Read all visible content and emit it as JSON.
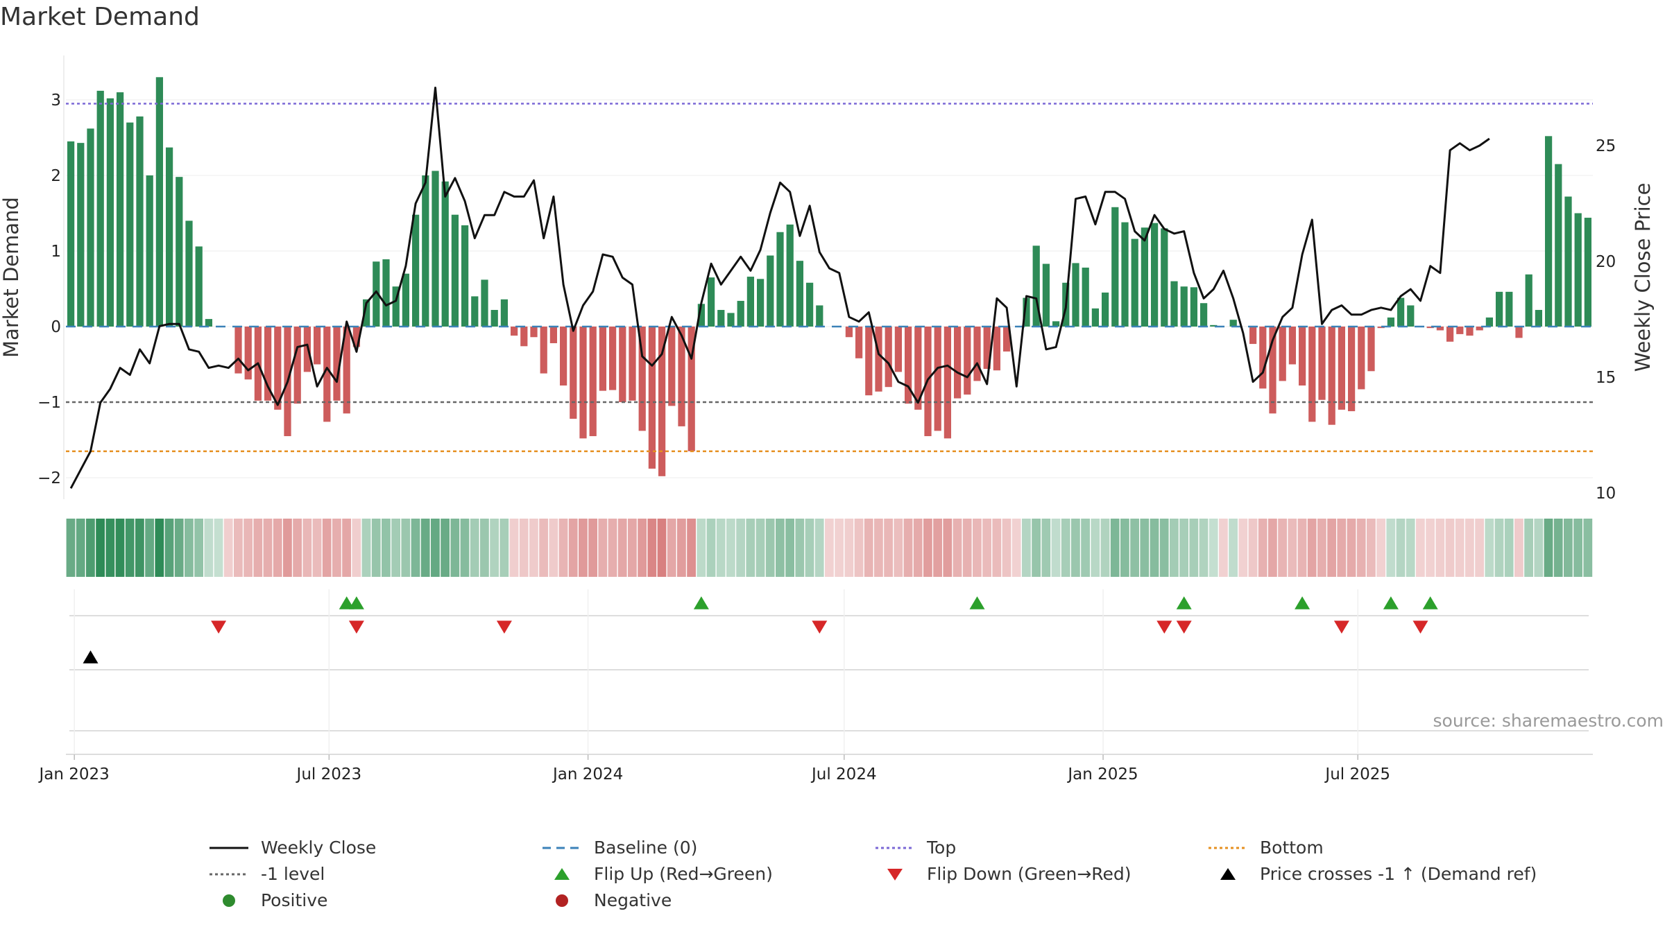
{
  "chart_data": {
    "type": "bar+line",
    "title": "Market Demand",
    "ylabel_left": "Market Demand",
    "ylabel_right": "Weekly Close Price",
    "ylim_left": [
      -2.2,
      3.5
    ],
    "ylim_right": [
      9.5,
      28.9
    ],
    "yticks_left": [
      "−2",
      "−1",
      "0",
      "1",
      "2",
      "3"
    ],
    "yticks_right": [
      "10",
      "15",
      "20",
      "25"
    ],
    "x_start": "2022-12-26",
    "x_step_days": 7,
    "xticks": [
      {
        "label": "Jan 2023",
        "date": "2023-01-01"
      },
      {
        "label": "Jul 2023",
        "date": "2023-07-01"
      },
      {
        "label": "Jan 2024",
        "date": "2024-01-01"
      },
      {
        "label": "Jul 2024",
        "date": "2024-07-01"
      },
      {
        "label": "Jan 2025",
        "date": "2025-01-01"
      },
      {
        "label": "Jul 2025",
        "date": "2025-07-01"
      }
    ],
    "reference_lines": {
      "top": 2.95,
      "minus_one": -1.0,
      "bottom": -1.65,
      "baseline": 0
    },
    "demand": [
      2.45,
      2.43,
      2.62,
      3.12,
      3.02,
      3.1,
      2.7,
      2.78,
      2.0,
      3.3,
      2.37,
      1.98,
      1.4,
      1.06,
      0.1,
      0,
      0,
      -0.62,
      -0.7,
      -0.98,
      -0.98,
      -1.1,
      -1.45,
      -1.02,
      -0.6,
      -0.5,
      -1.26,
      -0.98,
      -1.15,
      -0.27,
      0.36,
      0.86,
      0.89,
      0.53,
      0.7,
      1.48,
      2.0,
      2.06,
      1.92,
      1.48,
      1.34,
      0.4,
      0.62,
      0.22,
      0.36,
      -0.12,
      -0.26,
      -0.14,
      -0.62,
      -0.22,
      -0.78,
      -1.22,
      -1.48,
      -1.45,
      -0.85,
      -0.84,
      -1.0,
      -0.98,
      -1.38,
      -1.88,
      -1.98,
      -1.05,
      -1.32,
      -1.65,
      0.3,
      0.65,
      0.22,
      0.18,
      0.34,
      0.66,
      0.63,
      0.94,
      1.25,
      1.35,
      0.87,
      0.58,
      0.28,
      0,
      0,
      -0.14,
      -0.42,
      -0.91,
      -0.86,
      -0.8,
      -0.6,
      -1.02,
      -1.1,
      -1.45,
      -1.38,
      -1.48,
      -0.95,
      -0.9,
      -0.72,
      -0.56,
      -0.58,
      -0.33,
      0,
      0.38,
      1.07,
      0.83,
      0.07,
      0.58,
      0.84,
      0.78,
      0.24,
      0.45,
      1.58,
      1.38,
      1.16,
      1.31,
      1.37,
      1.3,
      0.6,
      0.53,
      0.52,
      0.31,
      0.02,
      0,
      0.09,
      0,
      -0.23,
      -0.82,
      -1.15,
      -0.72,
      -0.5,
      -0.78,
      -1.26,
      -0.97,
      -1.3,
      -1.1,
      -1.12,
      -0.83,
      -0.59,
      -0.02,
      0.12,
      0.38,
      0.28,
      0,
      -0.02,
      -0.05,
      -0.2,
      -0.1,
      -0.12,
      -0.05,
      0.12,
      0.46,
      0.46,
      -0.15,
      0.69,
      0.22,
      2.52,
      2.15,
      1.72,
      1.5,
      1.44
    ],
    "price": [
      10.2,
      11.0,
      11.8,
      13.9,
      14.5,
      15.4,
      15.1,
      16.2,
      15.6,
      17.2,
      17.3,
      17.3,
      16.2,
      16.1,
      15.4,
      15.5,
      15.4,
      15.8,
      15.3,
      15.6,
      14.6,
      13.8,
      14.8,
      16.3,
      16.4,
      14.6,
      15.4,
      14.8,
      17.4,
      16.1,
      18.2,
      18.7,
      18.1,
      18.3,
      19.8,
      22.5,
      23.4,
      27.5,
      22.8,
      23.6,
      22.6,
      21.0,
      22.0,
      22.0,
      23.0,
      22.8,
      22.8,
      23.5,
      21.0,
      22.8,
      19.0,
      17.0,
      18.1,
      18.7,
      20.3,
      20.2,
      19.3,
      19.0,
      15.9,
      15.5,
      16.0,
      17.6,
      16.8,
      15.8,
      18.2,
      19.9,
      19.0,
      19.6,
      20.2,
      19.6,
      20.5,
      22.1,
      23.4,
      23.0,
      21.1,
      22.4,
      20.4,
      19.7,
      19.5,
      17.6,
      17.4,
      17.8,
      16.0,
      15.6,
      14.8,
      14.6,
      13.9,
      14.9,
      15.4,
      15.5,
      15.2,
      15.0,
      15.6,
      14.7,
      18.4,
      18.0,
      14.6,
      18.5,
      18.4,
      16.2,
      16.3,
      18.0,
      22.7,
      22.8,
      21.6,
      23.0,
      23.0,
      22.7,
      21.3,
      20.9,
      22.0,
      21.4,
      21.2,
      21.3,
      19.5,
      18.4,
      18.8,
      19.6,
      18.4,
      16.9,
      14.8,
      15.2,
      16.6,
      17.6,
      18.0,
      20.3,
      21.8,
      17.3,
      17.9,
      18.1,
      17.7,
      17.7,
      17.9,
      18.0,
      17.9,
      18.5,
      18.8,
      18.3,
      19.8,
      19.5,
      24.8,
      25.1,
      24.8,
      25.0,
      25.3
    ],
    "color_strip_levels": [
      0.72,
      0.74,
      0.85,
      1.0,
      0.96,
      0.98,
      0.9,
      0.92,
      0.74,
      1.0,
      0.8,
      0.72,
      0.58,
      0.52,
      0.3,
      0.28,
      0.3,
      0.42,
      0.44,
      0.5,
      0.5,
      0.53,
      0.62,
      0.52,
      0.44,
      0.42,
      0.56,
      0.5,
      0.54,
      0.3,
      0.4,
      0.5,
      0.52,
      0.44,
      0.48,
      0.62,
      0.72,
      0.74,
      0.72,
      0.62,
      0.58,
      0.44,
      0.48,
      0.38,
      0.42,
      0.3,
      0.34,
      0.32,
      0.42,
      0.32,
      0.46,
      0.56,
      0.62,
      0.62,
      0.5,
      0.5,
      0.54,
      0.54,
      0.62,
      0.74,
      0.78,
      0.54,
      0.6,
      0.68,
      0.32,
      0.4,
      0.34,
      0.32,
      0.36,
      0.42,
      0.42,
      0.48,
      0.54,
      0.56,
      0.48,
      0.42,
      0.36,
      0.28,
      0.28,
      0.3,
      0.36,
      0.46,
      0.44,
      0.44,
      0.4,
      0.5,
      0.52,
      0.6,
      0.58,
      0.6,
      0.48,
      0.48,
      0.44,
      0.42,
      0.42,
      0.36,
      0.28,
      0.36,
      0.5,
      0.46,
      0.3,
      0.42,
      0.48,
      0.46,
      0.34,
      0.38,
      0.62,
      0.58,
      0.54,
      0.56,
      0.58,
      0.56,
      0.44,
      0.42,
      0.42,
      0.38,
      0.28,
      0.28,
      0.3,
      0.28,
      0.34,
      0.48,
      0.54,
      0.46,
      0.42,
      0.46,
      0.56,
      0.5,
      0.56,
      0.52,
      0.52,
      0.48,
      0.42,
      0.28,
      0.3,
      0.36,
      0.34,
      0.28,
      0.28,
      0.3,
      0.32,
      0.3,
      0.3,
      0.3,
      0.32,
      0.38,
      0.4,
      0.32,
      0.42,
      0.36,
      0.72,
      0.66,
      0.6,
      0.58,
      0.56
    ],
    "flip_up_weeks": [
      28,
      29,
      64,
      92,
      113,
      125,
      134,
      138
    ],
    "flip_down_weeks": [
      15,
      29,
      44,
      76,
      111,
      113,
      129,
      137
    ],
    "price_cross_weeks": [
      2
    ]
  },
  "legend": [
    {
      "label": "Weekly Close",
      "marker": "line-solid",
      "color": "#111111"
    },
    {
      "label": "Baseline (0)",
      "marker": "line-dash",
      "color": "#3b82b8"
    },
    {
      "label": "Top",
      "marker": "line-dot",
      "color": "#7b68d6"
    },
    {
      "label": "Bottom",
      "marker": "line-dot",
      "color": "#e69020"
    },
    {
      "label": "-1 level",
      "marker": "line-dot",
      "color": "#666666"
    },
    {
      "label": "Flip Up (Red→Green)",
      "marker": "triangle-up",
      "color": "#2ca02c"
    },
    {
      "label": "Flip Down (Green→Red)",
      "marker": "triangle-down",
      "color": "#d62728"
    },
    {
      "label": "Price crosses -1 ↑ (Demand ref)",
      "marker": "triangle-up",
      "color": "#000000"
    },
    {
      "label": "Positive",
      "marker": "circle",
      "color": "#2e8b2e"
    },
    {
      "label": "Negative",
      "marker": "circle",
      "color": "#b22222"
    }
  ],
  "source": "source: sharemaestro.com",
  "colors": {
    "positive_bar": "#2e8b57",
    "negative_bar": "#cd5c5c",
    "price_line": "#111111",
    "top_line": "#7b68d6",
    "bottom_line": "#e69020",
    "minus_one_line": "#666666",
    "baseline_line": "#3b82b8",
    "flip_up": "#2ca02c",
    "flip_down": "#d62728",
    "price_cross": "#000000"
  }
}
